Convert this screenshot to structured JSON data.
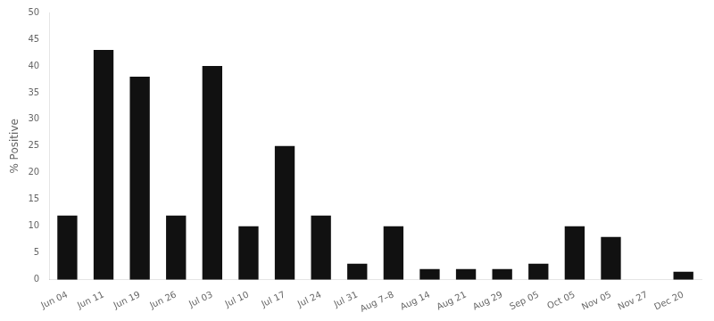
{
  "chart_data": {
    "type": "bar",
    "categories": [
      "Jun 04",
      "Jun 11",
      "Jun 19",
      "Jun 26",
      "Jul 03",
      "Jul 10",
      "Jul 17",
      "Jul 24",
      "Jul 31",
      "Aug 7–8",
      "Aug 14",
      "Aug 21",
      "Aug 29",
      "Sep 05",
      "Oct 05",
      "Nov 05",
      "Nov 27",
      "Dec 20"
    ],
    "values": [
      12,
      43,
      38,
      12,
      40,
      10,
      25,
      12,
      3,
      10,
      2,
      2,
      2,
      3,
      10,
      8,
      0,
      1.5
    ],
    "color": "#111111",
    "ylabel": "% Positive",
    "ylim": [
      0,
      50
    ],
    "yticks": [
      0,
      5,
      10,
      15,
      20,
      25,
      30,
      35,
      40,
      45,
      50
    ],
    "grid": false
  }
}
